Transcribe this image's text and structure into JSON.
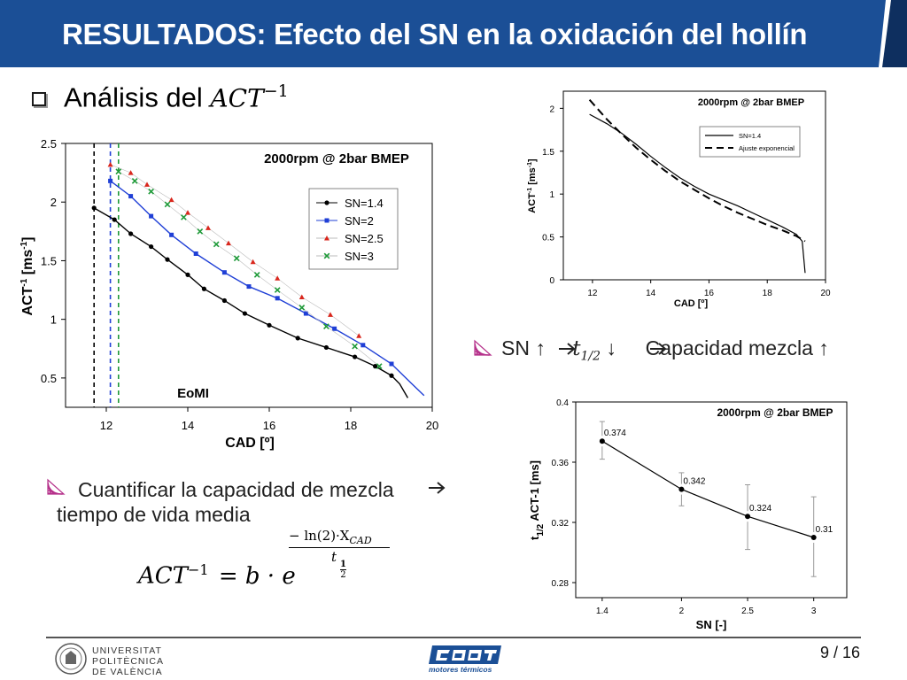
{
  "header": {
    "title": "RESULTADOS: Efecto del SN en la oxidación del hollín"
  },
  "section": {
    "label": "Análisis del ",
    "math": "ACT",
    "exp": "−1"
  },
  "bullets": {
    "sn_prefix": "SN ↑ ",
    "arrow": "",
    "t": "t",
    "t_sub": "1/2",
    "sn_mid": " ↓ ",
    "sn_suffix": " Capacidad mezcla ↑",
    "quantify_line1": "Cuantificar la capacidad de mezcla",
    "quantify_line2": "tiempo de vida media"
  },
  "formula": {
    "lhs": "ACT",
    "lhs_exp": "−1",
    "rhs": "= b · e",
    "exp_num": "− ln(2)·X",
    "exp_num_sub": "CAD",
    "exp_den": "t",
    "exp_den_sub1": "1",
    "exp_den_sub2": "2"
  },
  "footer": {
    "university": [
      "UNIVERSITAT",
      "POLITÈCNICA",
      "DE VALÈNCIA"
    ],
    "logo_text": "motores térmicos",
    "page": "9 / 16"
  },
  "colors": {
    "header_blue": "#1b4f96",
    "header_dark": "#0e2f5f",
    "bullet_magenta": "#b5308a",
    "sn14": "#000000",
    "sn2": "#1f3fd6",
    "sn25": "#d9261c",
    "sn3": "#1e9a38"
  },
  "chart_data": [
    {
      "type": "line",
      "annotation": "2000rpm @ 2bar BMEP",
      "xlabel": "CAD [º]",
      "ylabel": "ACT-1 [ms-1]",
      "ylabel_main": "ACT",
      "ylabel_sup1": "-1",
      "ylabel_mid": " [ms",
      "ylabel_sup2": "-1",
      "ylabel_end": "]",
      "xlim": [
        11,
        20
      ],
      "ylim": [
        0.25,
        2.5
      ],
      "xticks": [
        "12",
        "14",
        "16",
        "18",
        "20"
      ],
      "yticks": [
        "0.5",
        "1",
        "1.5",
        "2",
        "2.5"
      ],
      "eomi_label": "EoMI",
      "eomi_x": [
        11.7,
        12.1,
        12.3
      ],
      "series": [
        {
          "name": "SN=1.4",
          "marker": "circle",
          "color": "#000000",
          "x": [
            11.7,
            12.2,
            12.6,
            13.1,
            13.5,
            14.0,
            14.4,
            14.9,
            15.4,
            16.0,
            16.7,
            17.4,
            18.1,
            18.6,
            19.0,
            19.2,
            19.4
          ],
          "y": [
            1.95,
            1.85,
            1.73,
            1.62,
            1.51,
            1.38,
            1.26,
            1.16,
            1.05,
            0.95,
            0.84,
            0.76,
            0.68,
            0.6,
            0.52,
            0.45,
            0.33
          ]
        },
        {
          "name": "SN=2",
          "marker": "square",
          "color": "#1f3fd6",
          "x": [
            12.1,
            12.6,
            13.1,
            13.6,
            14.2,
            14.9,
            15.5,
            16.2,
            16.9,
            17.6,
            18.3,
            19.0,
            19.5,
            19.8
          ],
          "y": [
            2.18,
            2.05,
            1.88,
            1.72,
            1.56,
            1.4,
            1.28,
            1.18,
            1.05,
            0.92,
            0.78,
            0.62,
            0.45,
            0.35
          ]
        },
        {
          "name": "SN=2.5",
          "marker": "triangle",
          "color": "#d9261c",
          "x": [
            12.1,
            12.6,
            13.0,
            13.6,
            14.0,
            14.5,
            15.0,
            15.6,
            16.2,
            16.8,
            17.5,
            18.2
          ],
          "y": [
            2.32,
            2.25,
            2.15,
            2.02,
            1.91,
            1.78,
            1.65,
            1.49,
            1.35,
            1.19,
            1.04,
            0.86
          ]
        },
        {
          "name": "SN=3",
          "marker": "x",
          "color": "#1e9a38",
          "x": [
            12.3,
            12.7,
            13.1,
            13.5,
            13.9,
            14.3,
            14.7,
            15.2,
            15.7,
            16.2,
            16.8,
            17.4,
            18.1,
            18.7
          ],
          "y": [
            2.26,
            2.18,
            2.09,
            1.98,
            1.87,
            1.75,
            1.64,
            1.52,
            1.38,
            1.25,
            1.1,
            0.94,
            0.77,
            0.6
          ]
        }
      ]
    },
    {
      "type": "line",
      "annotation": "2000rpm @ 2bar BMEP",
      "xlabel": "CAD [º]",
      "ylabel_main": "ACT",
      "ylabel_sup1": "-1",
      "ylabel_mid": " [ms",
      "ylabel_sup2": "-1",
      "ylabel_end": "]",
      "xlim": [
        11,
        20
      ],
      "ylim": [
        0,
        2.2
      ],
      "xticks": [
        "12",
        "14",
        "16",
        "18",
        "20"
      ],
      "yticks": [
        "0",
        "0.5",
        "1",
        "1.5",
        "2"
      ],
      "series": [
        {
          "name": "SN=1.4",
          "style": "solid",
          "x": [
            11.9,
            12.5,
            13.0,
            13.5,
            14.0,
            14.5,
            15.0,
            15.5,
            16.0,
            16.5,
            17.0,
            17.5,
            18.0,
            18.5,
            19.0,
            19.2,
            19.3
          ],
          "y": [
            1.93,
            1.82,
            1.71,
            1.58,
            1.44,
            1.31,
            1.19,
            1.09,
            1.0,
            0.93,
            0.86,
            0.78,
            0.7,
            0.62,
            0.53,
            0.45,
            0.08
          ]
        },
        {
          "name": "Ajuste exponencial",
          "style": "dashed",
          "x": [
            11.9,
            12.5,
            13.0,
            13.5,
            14.0,
            14.5,
            15.0,
            15.5,
            16.0,
            16.5,
            17.0,
            17.5,
            18.0,
            18.5,
            19.0,
            19.3
          ],
          "y": [
            2.1,
            1.87,
            1.7,
            1.54,
            1.4,
            1.27,
            1.15,
            1.05,
            0.95,
            0.86,
            0.78,
            0.71,
            0.64,
            0.58,
            0.51,
            0.45
          ]
        }
      ]
    },
    {
      "type": "line",
      "annotation": "2000rpm @ 2bar BMEP",
      "xlabel": "SN [-]",
      "ylabel": "t1/2 ACT-1 [ms]",
      "ylabel_main": "t",
      "ylabel_sub": "1/2",
      "ylabel_rest": " ACT-1 [ms]",
      "xlim": [
        1.2,
        3.25
      ],
      "ylim": [
        0.27,
        0.4
      ],
      "xticks": [
        "1.4",
        "2",
        "2.5",
        "3"
      ],
      "yticks": [
        "0.28",
        "0.32",
        "0.36",
        "0.4"
      ],
      "x": [
        1.4,
        2,
        2.5,
        3
      ],
      "values": [
        0.374,
        0.342,
        0.324,
        0.31
      ],
      "labels": [
        "0.374",
        "0.342",
        "0.324",
        "0.31"
      ],
      "err_low": [
        0.362,
        0.331,
        0.302,
        0.284
      ],
      "err_high": [
        0.387,
        0.353,
        0.345,
        0.337
      ]
    }
  ]
}
